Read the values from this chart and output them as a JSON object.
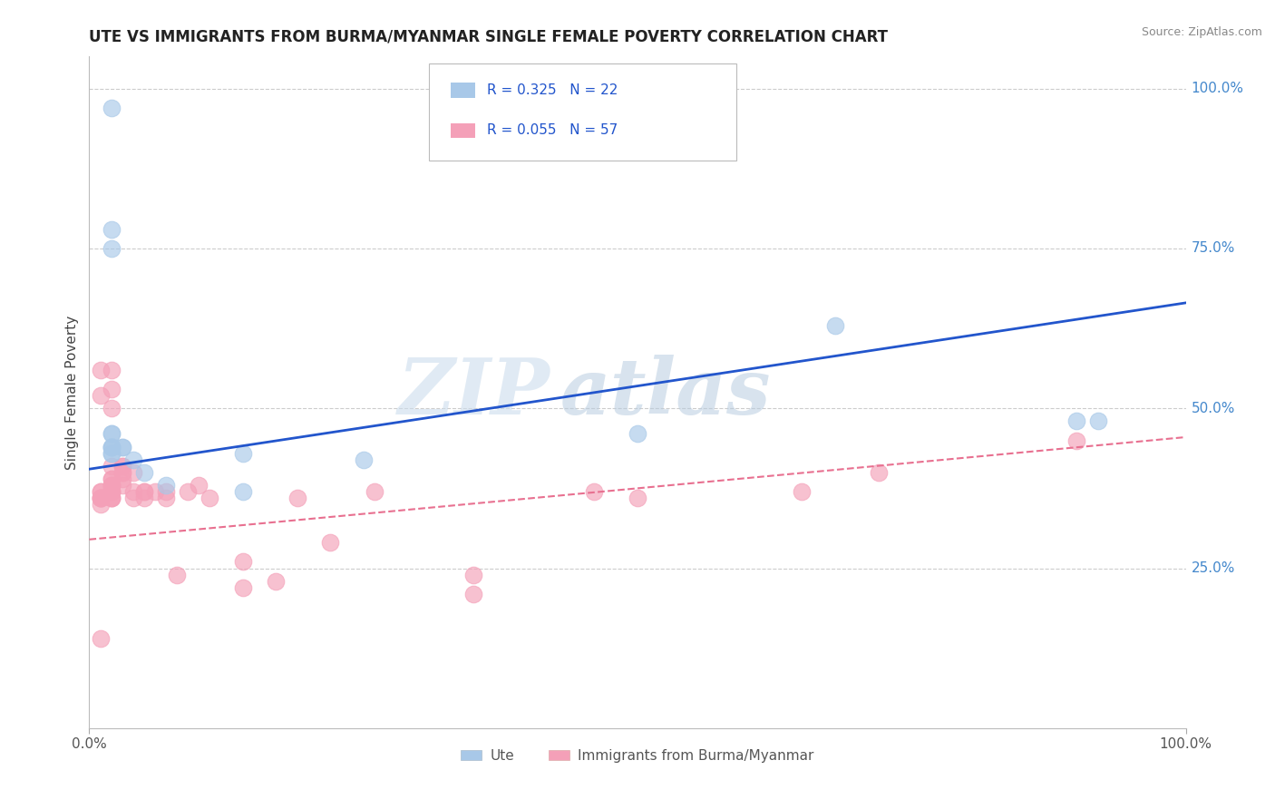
{
  "title": "UTE VS IMMIGRANTS FROM BURMA/MYANMAR SINGLE FEMALE POVERTY CORRELATION CHART",
  "source": "Source: ZipAtlas.com",
  "ylabel": "Single Female Poverty",
  "watermark_zip": "ZIP",
  "watermark_atlas": "atlas",
  "right_ytick_labels": [
    "100.0%",
    "75.0%",
    "50.0%",
    "25.0%"
  ],
  "right_ytick_positions": [
    1.0,
    0.75,
    0.5,
    0.25
  ],
  "ute_color": "#a8c8e8",
  "burma_color": "#f4a0b8",
  "ute_line_color": "#2255cc",
  "burma_line_color": "#e87090",
  "grid_color": "#cccccc",
  "title_color": "#222222",
  "right_tick_color": "#4488cc",
  "ute_scatter_x": [
    0.02,
    0.02,
    0.02,
    0.02,
    0.02,
    0.02,
    0.02,
    0.03,
    0.03,
    0.04,
    0.05,
    0.07,
    0.14,
    0.14,
    0.25,
    0.5,
    0.68,
    0.9,
    0.92,
    0.02,
    0.02,
    0.02
  ],
  "ute_scatter_y": [
    0.97,
    0.46,
    0.46,
    0.44,
    0.44,
    0.43,
    0.75,
    0.44,
    0.44,
    0.42,
    0.4,
    0.38,
    0.37,
    0.43,
    0.42,
    0.46,
    0.63,
    0.48,
    0.48,
    0.78,
    0.44,
    0.43
  ],
  "burma_scatter_x": [
    0.01,
    0.01,
    0.01,
    0.01,
    0.01,
    0.01,
    0.01,
    0.01,
    0.01,
    0.02,
    0.02,
    0.02,
    0.02,
    0.02,
    0.02,
    0.02,
    0.02,
    0.02,
    0.02,
    0.02,
    0.02,
    0.02,
    0.02,
    0.02,
    0.03,
    0.03,
    0.03,
    0.03,
    0.03,
    0.03,
    0.04,
    0.04,
    0.04,
    0.05,
    0.05,
    0.05,
    0.06,
    0.07,
    0.07,
    0.08,
    0.09,
    0.1,
    0.11,
    0.14,
    0.14,
    0.17,
    0.19,
    0.22,
    0.26,
    0.35,
    0.35,
    0.46,
    0.5,
    0.65,
    0.72,
    0.9,
    0.01
  ],
  "burma_scatter_y": [
    0.35,
    0.36,
    0.36,
    0.37,
    0.37,
    0.36,
    0.36,
    0.14,
    0.52,
    0.36,
    0.36,
    0.37,
    0.37,
    0.38,
    0.38,
    0.39,
    0.39,
    0.41,
    0.5,
    0.53,
    0.56,
    0.38,
    0.37,
    0.36,
    0.38,
    0.39,
    0.4,
    0.41,
    0.41,
    0.4,
    0.36,
    0.37,
    0.4,
    0.36,
    0.37,
    0.37,
    0.37,
    0.36,
    0.37,
    0.24,
    0.37,
    0.38,
    0.36,
    0.26,
    0.22,
    0.23,
    0.36,
    0.29,
    0.37,
    0.24,
    0.21,
    0.37,
    0.36,
    0.37,
    0.4,
    0.45,
    0.56
  ],
  "ute_R": 0.325,
  "ute_N": 22,
  "burma_R": 0.055,
  "burma_N": 57,
  "xlim": [
    0.0,
    1.0
  ],
  "ylim": [
    0.0,
    1.05
  ],
  "ute_line_y0": 0.405,
  "ute_line_y1": 0.665,
  "burma_line_y0": 0.295,
  "burma_line_y1": 0.455
}
